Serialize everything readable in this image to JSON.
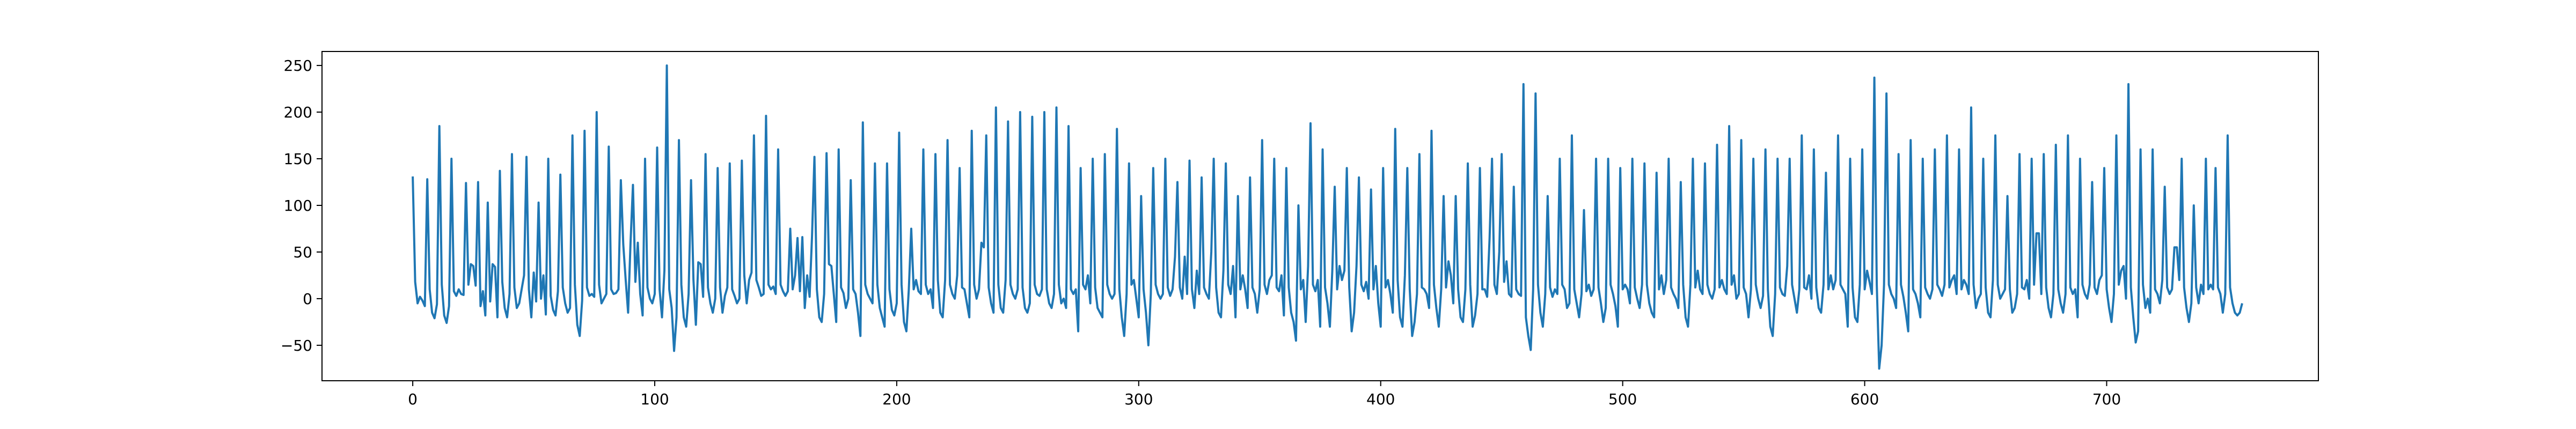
{
  "chart_data": {
    "type": "line",
    "title": "",
    "xlabel": "",
    "ylabel": "",
    "xlim": [
      -37.5,
      787.5
    ],
    "ylim": [
      -88,
      265
    ],
    "x_ticks": [
      0,
      100,
      200,
      300,
      400,
      500,
      600,
      700
    ],
    "y_ticks": [
      -50,
      0,
      50,
      100,
      150,
      200,
      250
    ],
    "grid": false,
    "legend": "none",
    "line_color": "#1f77b4",
    "series": [
      {
        "x_start": 0,
        "x_step": 1,
        "values": [
          131,
          18,
          -5,
          2,
          -2,
          -8,
          128,
          10,
          -15,
          -21,
          -6,
          185,
          15,
          -18,
          -26,
          -8,
          150,
          8,
          3,
          10,
          5,
          4,
          124,
          15,
          37,
          35,
          14,
          125,
          -8,
          8,
          -18,
          103,
          -3,
          37,
          34,
          -20,
          137,
          18,
          -10,
          -20,
          5,
          155,
          12,
          -10,
          -5,
          10,
          25,
          152,
          10,
          -20,
          28,
          -3,
          103,
          0,
          25,
          -17,
          150,
          3,
          -12,
          -18,
          8,
          133,
          12,
          -5,
          -15,
          -10,
          175,
          15,
          -28,
          -40,
          -2,
          180,
          12,
          3,
          5,
          2,
          200,
          15,
          -5,
          0,
          5,
          163,
          10,
          5,
          6,
          10,
          127,
          58,
          20,
          -15,
          60,
          122,
          18,
          60,
          5,
          -18,
          150,
          12,
          0,
          -5,
          5,
          162,
          10,
          -20,
          30,
          250,
          10,
          -10,
          -56,
          -20,
          170,
          15,
          -20,
          -30,
          5,
          127,
          20,
          -28,
          39,
          37,
          2,
          155,
          12,
          -5,
          -15,
          0,
          140,
          12,
          -15,
          3,
          12,
          145,
          10,
          3,
          -5,
          0,
          148,
          25,
          -5,
          20,
          28,
          175,
          20,
          12,
          3,
          5,
          196,
          15,
          10,
          13,
          5,
          160,
          15,
          8,
          3,
          8,
          75,
          10,
          25,
          65,
          8,
          66,
          -10,
          25,
          2,
          67,
          152,
          10,
          -20,
          -25,
          5,
          156,
          37,
          35,
          5,
          -25,
          160,
          12,
          6,
          -10,
          0,
          127,
          10,
          5,
          -15,
          -40,
          189,
          15,
          5,
          0,
          -5,
          145,
          15,
          -10,
          -20,
          -30,
          145,
          10,
          -12,
          -18,
          -5,
          178,
          15,
          -25,
          -35,
          10,
          75,
          10,
          20,
          8,
          5,
          160,
          15,
          5,
          10,
          -10,
          155,
          20,
          -15,
          -20,
          20,
          170,
          15,
          5,
          0,
          25,
          140,
          12,
          10,
          -5,
          -20,
          180,
          15,
          0,
          10,
          60,
          55,
          175,
          12,
          -5,
          -15,
          205,
          15,
          -10,
          -15,
          20,
          190,
          15,
          5,
          0,
          10,
          200,
          12,
          -10,
          -15,
          -5,
          195,
          15,
          5,
          3,
          10,
          200,
          10,
          -5,
          -10,
          5,
          205,
          15,
          -5,
          0,
          -10,
          185,
          10,
          5,
          10,
          -35,
          140,
          15,
          10,
          25,
          -5,
          150,
          12,
          -10,
          -15,
          -20,
          155,
          15,
          5,
          0,
          5,
          182,
          10,
          -20,
          -40,
          5,
          145,
          15,
          20,
          0,
          -20,
          110,
          10,
          -15,
          -50,
          5,
          140,
          15,
          5,
          0,
          5,
          150,
          12,
          3,
          10,
          45,
          125,
          12,
          0,
          45,
          5,
          148,
          10,
          -10,
          30,
          5,
          130,
          12,
          5,
          0,
          50,
          150,
          12,
          -15,
          -20,
          30,
          145,
          15,
          5,
          35,
          -20,
          110,
          10,
          25,
          10,
          -10,
          130,
          12,
          5,
          -15,
          10,
          170,
          15,
          5,
          20,
          25,
          150,
          12,
          8,
          25,
          -18,
          140,
          12,
          -15,
          -25,
          -45,
          100,
          10,
          20,
          -25,
          35,
          188,
          15,
          8,
          20,
          -30,
          160,
          12,
          -5,
          -30,
          30,
          120,
          10,
          35,
          20,
          30,
          140,
          12,
          -35,
          -15,
          35,
          130,
          15,
          8,
          18,
          0,
          117,
          10,
          35,
          -5,
          -30,
          140,
          12,
          20,
          5,
          -15,
          182,
          20,
          -20,
          -30,
          25,
          140,
          10,
          -40,
          -25,
          5,
          155,
          12,
          10,
          5,
          -10,
          180,
          15,
          -10,
          -30,
          10,
          110,
          12,
          40,
          25,
          -5,
          110,
          10,
          -20,
          -25,
          10,
          145,
          15,
          -30,
          -18,
          5,
          140,
          10,
          10,
          2,
          65,
          150,
          15,
          5,
          50,
          155,
          18,
          40,
          5,
          2,
          120,
          10,
          5,
          3,
          230,
          -20,
          -40,
          -55,
          10,
          220,
          15,
          -15,
          -30,
          5,
          110,
          12,
          2,
          10,
          5,
          150,
          15,
          10,
          -10,
          -5,
          175,
          10,
          -5,
          -20,
          5,
          95,
          8,
          15,
          3,
          10,
          150,
          12,
          -5,
          -25,
          -10,
          150,
          15,
          5,
          -8,
          -30,
          140,
          10,
          15,
          10,
          -5,
          150,
          12,
          0,
          -10,
          15,
          145,
          15,
          -5,
          -15,
          -20,
          135,
          10,
          25,
          5,
          20,
          150,
          12,
          5,
          0,
          -10,
          125,
          15,
          -20,
          -30,
          15,
          150,
          12,
          30,
          10,
          5,
          145,
          15,
          5,
          0,
          10,
          165,
          12,
          20,
          10,
          5,
          185,
          15,
          25,
          0,
          5,
          170,
          12,
          5,
          -20,
          10,
          150,
          15,
          0,
          -10,
          3,
          160,
          10,
          -30,
          -40,
          5,
          150,
          12,
          5,
          3,
          35,
          150,
          15,
          0,
          -15,
          10,
          175,
          12,
          10,
          25,
          0,
          160,
          12,
          -10,
          -15,
          15,
          135,
          10,
          25,
          10,
          20,
          175,
          15,
          10,
          5,
          -30,
          150,
          12,
          -20,
          -25,
          15,
          160,
          10,
          30,
          18,
          5,
          237,
          15,
          -75,
          -50,
          15,
          220,
          15,
          5,
          0,
          -10,
          155,
          15,
          2,
          -15,
          -35,
          170,
          10,
          5,
          -5,
          -20,
          150,
          12,
          5,
          0,
          10,
          160,
          15,
          10,
          3,
          15,
          175,
          12,
          20,
          25,
          5,
          160,
          10,
          20,
          15,
          5,
          205,
          15,
          -10,
          0,
          5,
          150,
          12,
          -15,
          -20,
          20,
          175,
          15,
          0,
          5,
          10,
          110,
          10,
          -15,
          -10,
          5,
          155,
          12,
          10,
          20,
          0,
          150,
          15,
          70,
          70,
          5,
          155,
          12,
          -10,
          -20,
          5,
          165,
          10,
          -5,
          -15,
          5,
          175,
          12,
          5,
          10,
          -20,
          150,
          15,
          5,
          0,
          15,
          125,
          12,
          5,
          20,
          25,
          140,
          10,
          -10,
          -25,
          5,
          175,
          15,
          30,
          35,
          0,
          230,
          12,
          -20,
          -47,
          -35,
          160,
          15,
          -10,
          0,
          -15,
          160,
          10,
          5,
          -5,
          20,
          120,
          12,
          5,
          10,
          55,
          55,
          20,
          150,
          12,
          -10,
          -25,
          -5,
          100,
          12,
          -5,
          15,
          5,
          150,
          10,
          15,
          10,
          140,
          12,
          5,
          -15,
          5,
          175,
          12,
          -5,
          -15,
          -18,
          -15,
          -5
        ]
      }
    ]
  }
}
